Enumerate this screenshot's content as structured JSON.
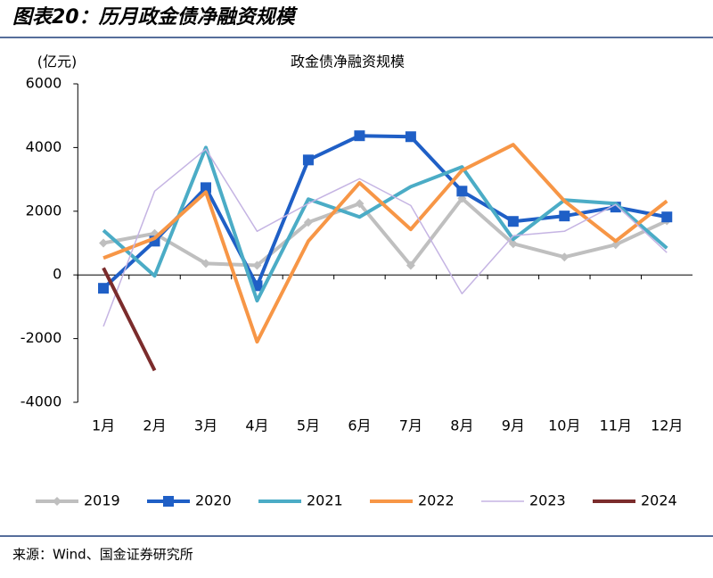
{
  "header": {
    "title": "图表20：历月政金债净融资规模"
  },
  "chart_data": {
    "type": "line",
    "title": "政金债净融资规模",
    "unit_label": "(亿元)",
    "categories": [
      "1月",
      "2月",
      "3月",
      "4月",
      "5月",
      "6月",
      "7月",
      "8月",
      "9月",
      "10月",
      "11月",
      "12月"
    ],
    "ylim": [
      -4000,
      6000
    ],
    "yticks": [
      -4000,
      -2000,
      0,
      2000,
      4000,
      6000
    ],
    "grid": false,
    "legend": "bottom",
    "series": [
      {
        "name": "2019",
        "color": "#bfbfbf",
        "marker": "diamond",
        "values": [
          1000,
          1300,
          360,
          300,
          1650,
          2240,
          300,
          2400,
          980,
          560,
          950,
          1700
        ]
      },
      {
        "name": "2020",
        "color": "#1f5fc6",
        "marker": "square",
        "values": [
          -420,
          1060,
          2740,
          -340,
          3610,
          4370,
          4340,
          2630,
          1680,
          1850,
          2130,
          1820
        ]
      },
      {
        "name": "2021",
        "color": "#4bacc6",
        "marker": "none",
        "values": [
          1400,
          -30,
          4000,
          -810,
          2380,
          1820,
          2770,
          3390,
          1120,
          2350,
          2240,
          840
        ]
      },
      {
        "name": "2022",
        "color": "#f79646",
        "marker": "none",
        "values": [
          530,
          1150,
          2600,
          -2100,
          1060,
          2890,
          1430,
          3280,
          4090,
          2320,
          1060,
          2320
        ]
      },
      {
        "name": "2023",
        "color": "#c5b4e3",
        "marker": "none",
        "values": [
          -1620,
          2630,
          3950,
          1370,
          2240,
          3020,
          2180,
          -590,
          1230,
          1370,
          2210,
          700
        ]
      },
      {
        "name": "2024",
        "color": "#7b2c2c",
        "marker": "none",
        "values": [
          220,
          -3000,
          null,
          null,
          null,
          null,
          null,
          null,
          null,
          null,
          null,
          null
        ]
      }
    ]
  },
  "footer": {
    "source": "来源：Wind、国金证券研究所"
  }
}
